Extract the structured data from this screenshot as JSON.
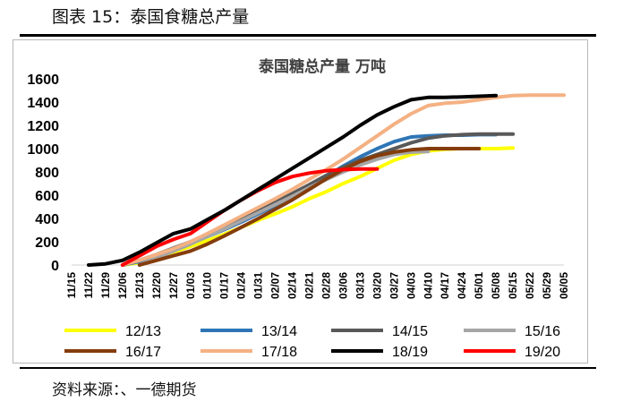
{
  "figure": {
    "title": "图表 15：泰国食糖总产量",
    "source": "资料来源：、一德期货"
  },
  "chart_data": {
    "type": "line",
    "title": "泰国糖总产量 万吨",
    "xlabel": "",
    "ylabel": "",
    "ylim": [
      0,
      1600
    ],
    "yticks": [
      0,
      200,
      400,
      600,
      800,
      1000,
      1200,
      1400,
      1600
    ],
    "grid": false,
    "legend_position": "bottom",
    "x_dates": [
      "11/15",
      "11/22",
      "11/29",
      "12/06",
      "12/13",
      "12/20",
      "12/27",
      "01/03",
      "01/10",
      "01/17",
      "01/24",
      "01/31",
      "02/07",
      "02/14",
      "02/21",
      "02/28",
      "03/06",
      "03/13",
      "03/20",
      "03/27",
      "04/03",
      "04/10",
      "04/17",
      "04/24",
      "05/01",
      "05/08",
      "05/15",
      "05/22",
      "05/29",
      "06/05"
    ],
    "series": [
      {
        "name": "12/13",
        "color": "#ffff00",
        "dates": [
          "12/06",
          "12/13",
          "12/20",
          "12/27",
          "01/03",
          "01/10",
          "01/17",
          "01/24",
          "01/31",
          "02/07",
          "02/14",
          "02/21",
          "02/28",
          "03/06",
          "03/13",
          "03/20",
          "03/27",
          "04/03",
          "04/10",
          "04/17",
          "04/24",
          "05/01",
          "05/08",
          "05/15"
        ],
        "values": [
          0,
          20,
          60,
          110,
          160,
          210,
          265,
          325,
          385,
          440,
          500,
          570,
          630,
          700,
          760,
          830,
          900,
          950,
          980,
          995,
          1000,
          1000,
          1000,
          1005
        ]
      },
      {
        "name": "13/14",
        "color": "#2e75b6",
        "dates": [
          "12/06",
          "12/13",
          "12/20",
          "12/27",
          "01/03",
          "01/10",
          "01/17",
          "01/24",
          "01/31",
          "02/07",
          "02/14",
          "02/21",
          "02/28",
          "03/06",
          "03/13",
          "03/20",
          "03/27",
          "04/03",
          "04/10",
          "04/17",
          "04/24",
          "05/01",
          "05/08"
        ],
        "values": [
          0,
          30,
          80,
          130,
          185,
          245,
          305,
          370,
          440,
          510,
          590,
          670,
          760,
          850,
          930,
          1000,
          1060,
          1100,
          1110,
          1115,
          1115,
          1120,
          1120
        ]
      },
      {
        "name": "14/15",
        "color": "#595959",
        "dates": [
          "12/06",
          "12/13",
          "12/20",
          "12/27",
          "01/03",
          "01/10",
          "01/17",
          "01/24",
          "01/31",
          "02/07",
          "02/14",
          "02/21",
          "02/28",
          "03/06",
          "03/13",
          "03/20",
          "03/27",
          "04/03",
          "04/10",
          "04/17",
          "04/24",
          "05/01",
          "05/08",
          "05/15"
        ],
        "values": [
          0,
          40,
          90,
          145,
          200,
          260,
          325,
          395,
          465,
          540,
          615,
          690,
          770,
          840,
          900,
          950,
          1000,
          1050,
          1090,
          1110,
          1120,
          1125,
          1125,
          1125
        ]
      },
      {
        "name": "15/16",
        "color": "#a6a6a6",
        "dates": [
          "12/13",
          "12/20",
          "12/27",
          "01/03",
          "01/10",
          "01/17",
          "01/24",
          "01/31",
          "02/07",
          "02/14",
          "02/21",
          "02/28",
          "03/06",
          "03/13",
          "03/20",
          "03/27",
          "04/03",
          "04/10"
        ],
        "values": [
          0,
          60,
          120,
          180,
          245,
          310,
          380,
          450,
          520,
          590,
          665,
          735,
          800,
          860,
          910,
          950,
          970,
          975
        ]
      },
      {
        "name": "16/17",
        "color": "#843c0c",
        "dates": [
          "12/13",
          "12/20",
          "12/27",
          "01/03",
          "01/10",
          "01/17",
          "01/24",
          "01/31",
          "02/07",
          "02/14",
          "02/21",
          "02/28",
          "03/06",
          "03/13",
          "03/20",
          "03/27",
          "04/03",
          "04/10",
          "04/17",
          "04/24",
          "05/01"
        ],
        "values": [
          0,
          40,
          80,
          120,
          180,
          250,
          325,
          400,
          480,
          560,
          650,
          740,
          820,
          890,
          940,
          970,
          990,
          1000,
          1000,
          1000,
          1000
        ]
      },
      {
        "name": "17/18",
        "color": "#f4b183",
        "dates": [
          "12/06",
          "12/13",
          "12/20",
          "12/27",
          "01/03",
          "01/10",
          "01/17",
          "01/24",
          "01/31",
          "02/07",
          "02/14",
          "02/21",
          "02/28",
          "03/06",
          "03/13",
          "03/20",
          "03/27",
          "04/03",
          "04/10",
          "04/17",
          "04/24",
          "05/01",
          "05/08",
          "05/15",
          "05/22",
          "05/29",
          "06/05"
        ],
        "values": [
          0,
          40,
          90,
          140,
          200,
          270,
          345,
          420,
          495,
          570,
          650,
          735,
          820,
          910,
          1010,
          1110,
          1210,
          1300,
          1370,
          1390,
          1400,
          1420,
          1440,
          1455,
          1460,
          1460,
          1460
        ]
      },
      {
        "name": "18/19",
        "color": "#000000",
        "dates": [
          "11/22",
          "11/29",
          "12/06",
          "12/13",
          "12/20",
          "12/27",
          "01/03",
          "01/10",
          "01/17",
          "01/24",
          "01/31",
          "02/07",
          "02/14",
          "02/21",
          "02/28",
          "03/06",
          "03/13",
          "03/20",
          "03/27",
          "04/03",
          "04/10",
          "04/17",
          "04/24",
          "05/01",
          "05/08"
        ],
        "values": [
          0,
          10,
          40,
          110,
          190,
          270,
          310,
          390,
          470,
          560,
          650,
          740,
          830,
          920,
          1010,
          1100,
          1200,
          1290,
          1360,
          1420,
          1440,
          1440,
          1445,
          1450,
          1455
        ]
      },
      {
        "name": "19/20",
        "color": "#ff0000",
        "dates": [
          "12/06",
          "12/13",
          "12/20",
          "12/27",
          "01/03",
          "01/10",
          "01/17",
          "01/24",
          "01/31",
          "02/07",
          "02/14",
          "02/21",
          "02/28",
          "03/06",
          "03/13",
          "03/20"
        ],
        "values": [
          0,
          80,
          160,
          220,
          270,
          370,
          470,
          560,
          640,
          710,
          760,
          790,
          810,
          820,
          825,
          825
        ]
      }
    ]
  }
}
